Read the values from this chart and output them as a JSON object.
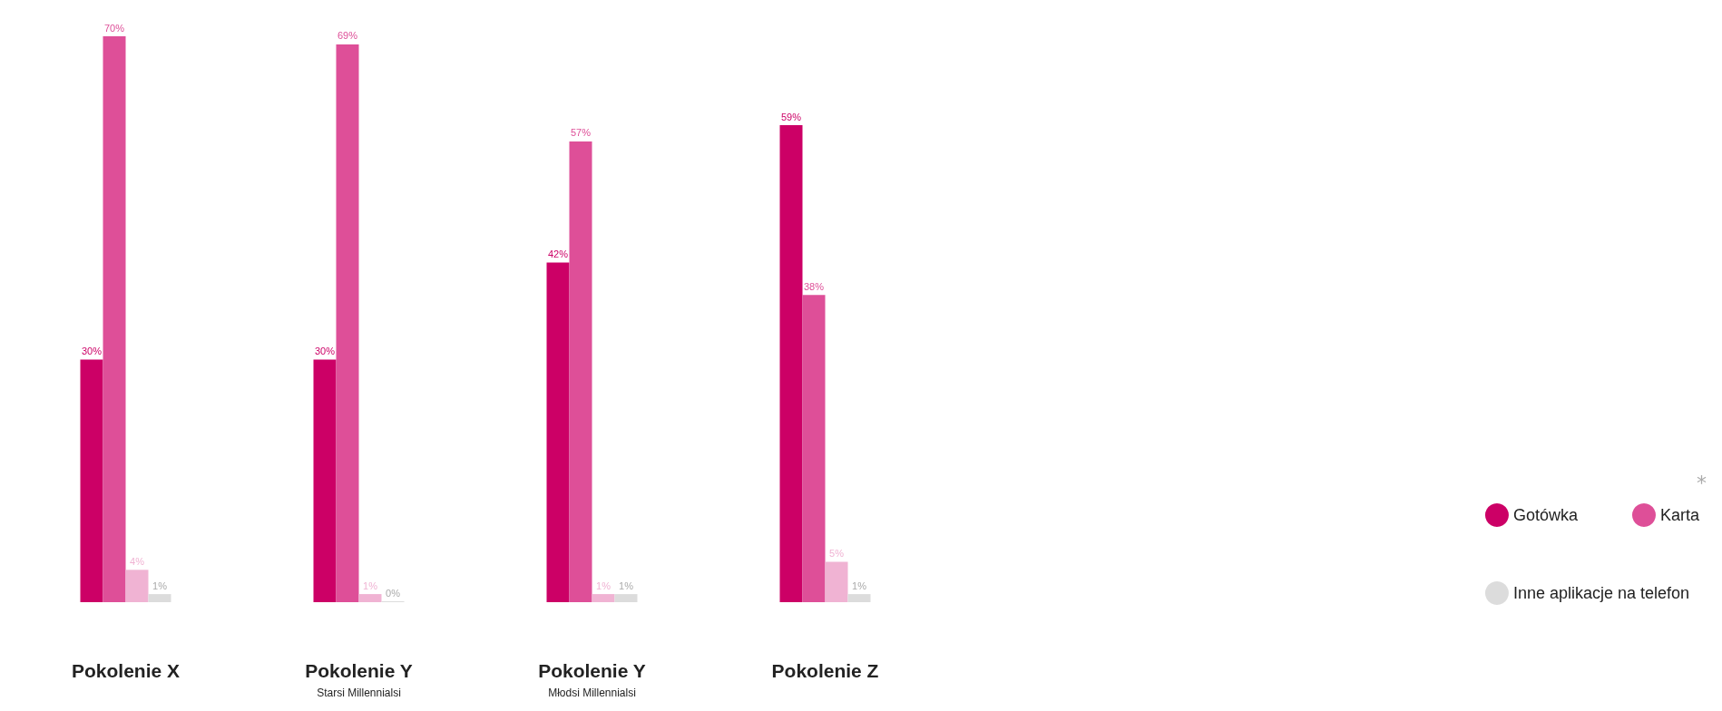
{
  "chart_data": {
    "type": "bar",
    "categories": [
      "Pokolenie X",
      "Pokolenie Y\nStarsi Millennialsi",
      "Pokolenie Y\nMłodsi Millennialsi",
      "Pokolenie Z"
    ],
    "series": [
      {
        "name": "Gotówka",
        "color": "#cc0066",
        "values": [
          30,
          30,
          42,
          59
        ],
        "value_labels": [
          "30%",
          "30%",
          "42%",
          "59%"
        ]
      },
      {
        "name": "Karta",
        "color": "#de4f98",
        "values": [
          70,
          69,
          57,
          38
        ],
        "value_labels": [
          "70%",
          "69%",
          "57%",
          "38%"
        ]
      },
      {
        "color": "#f0b3d3",
        "values": [
          4,
          1,
          1,
          5
        ],
        "value_labels": [
          "4%",
          "1%",
          "1%",
          "5%"
        ]
      },
      {
        "name": "Inne aplikacje na telefon",
        "color": "#dcdcdc",
        "values": [
          1,
          0,
          1,
          1
        ],
        "value_labels": [
          "1%",
          "0%",
          "1%",
          "1%"
        ]
      }
    ],
    "legend": "right",
    "tick_labels": "x",
    "annotations": [
      "*"
    ]
  }
}
